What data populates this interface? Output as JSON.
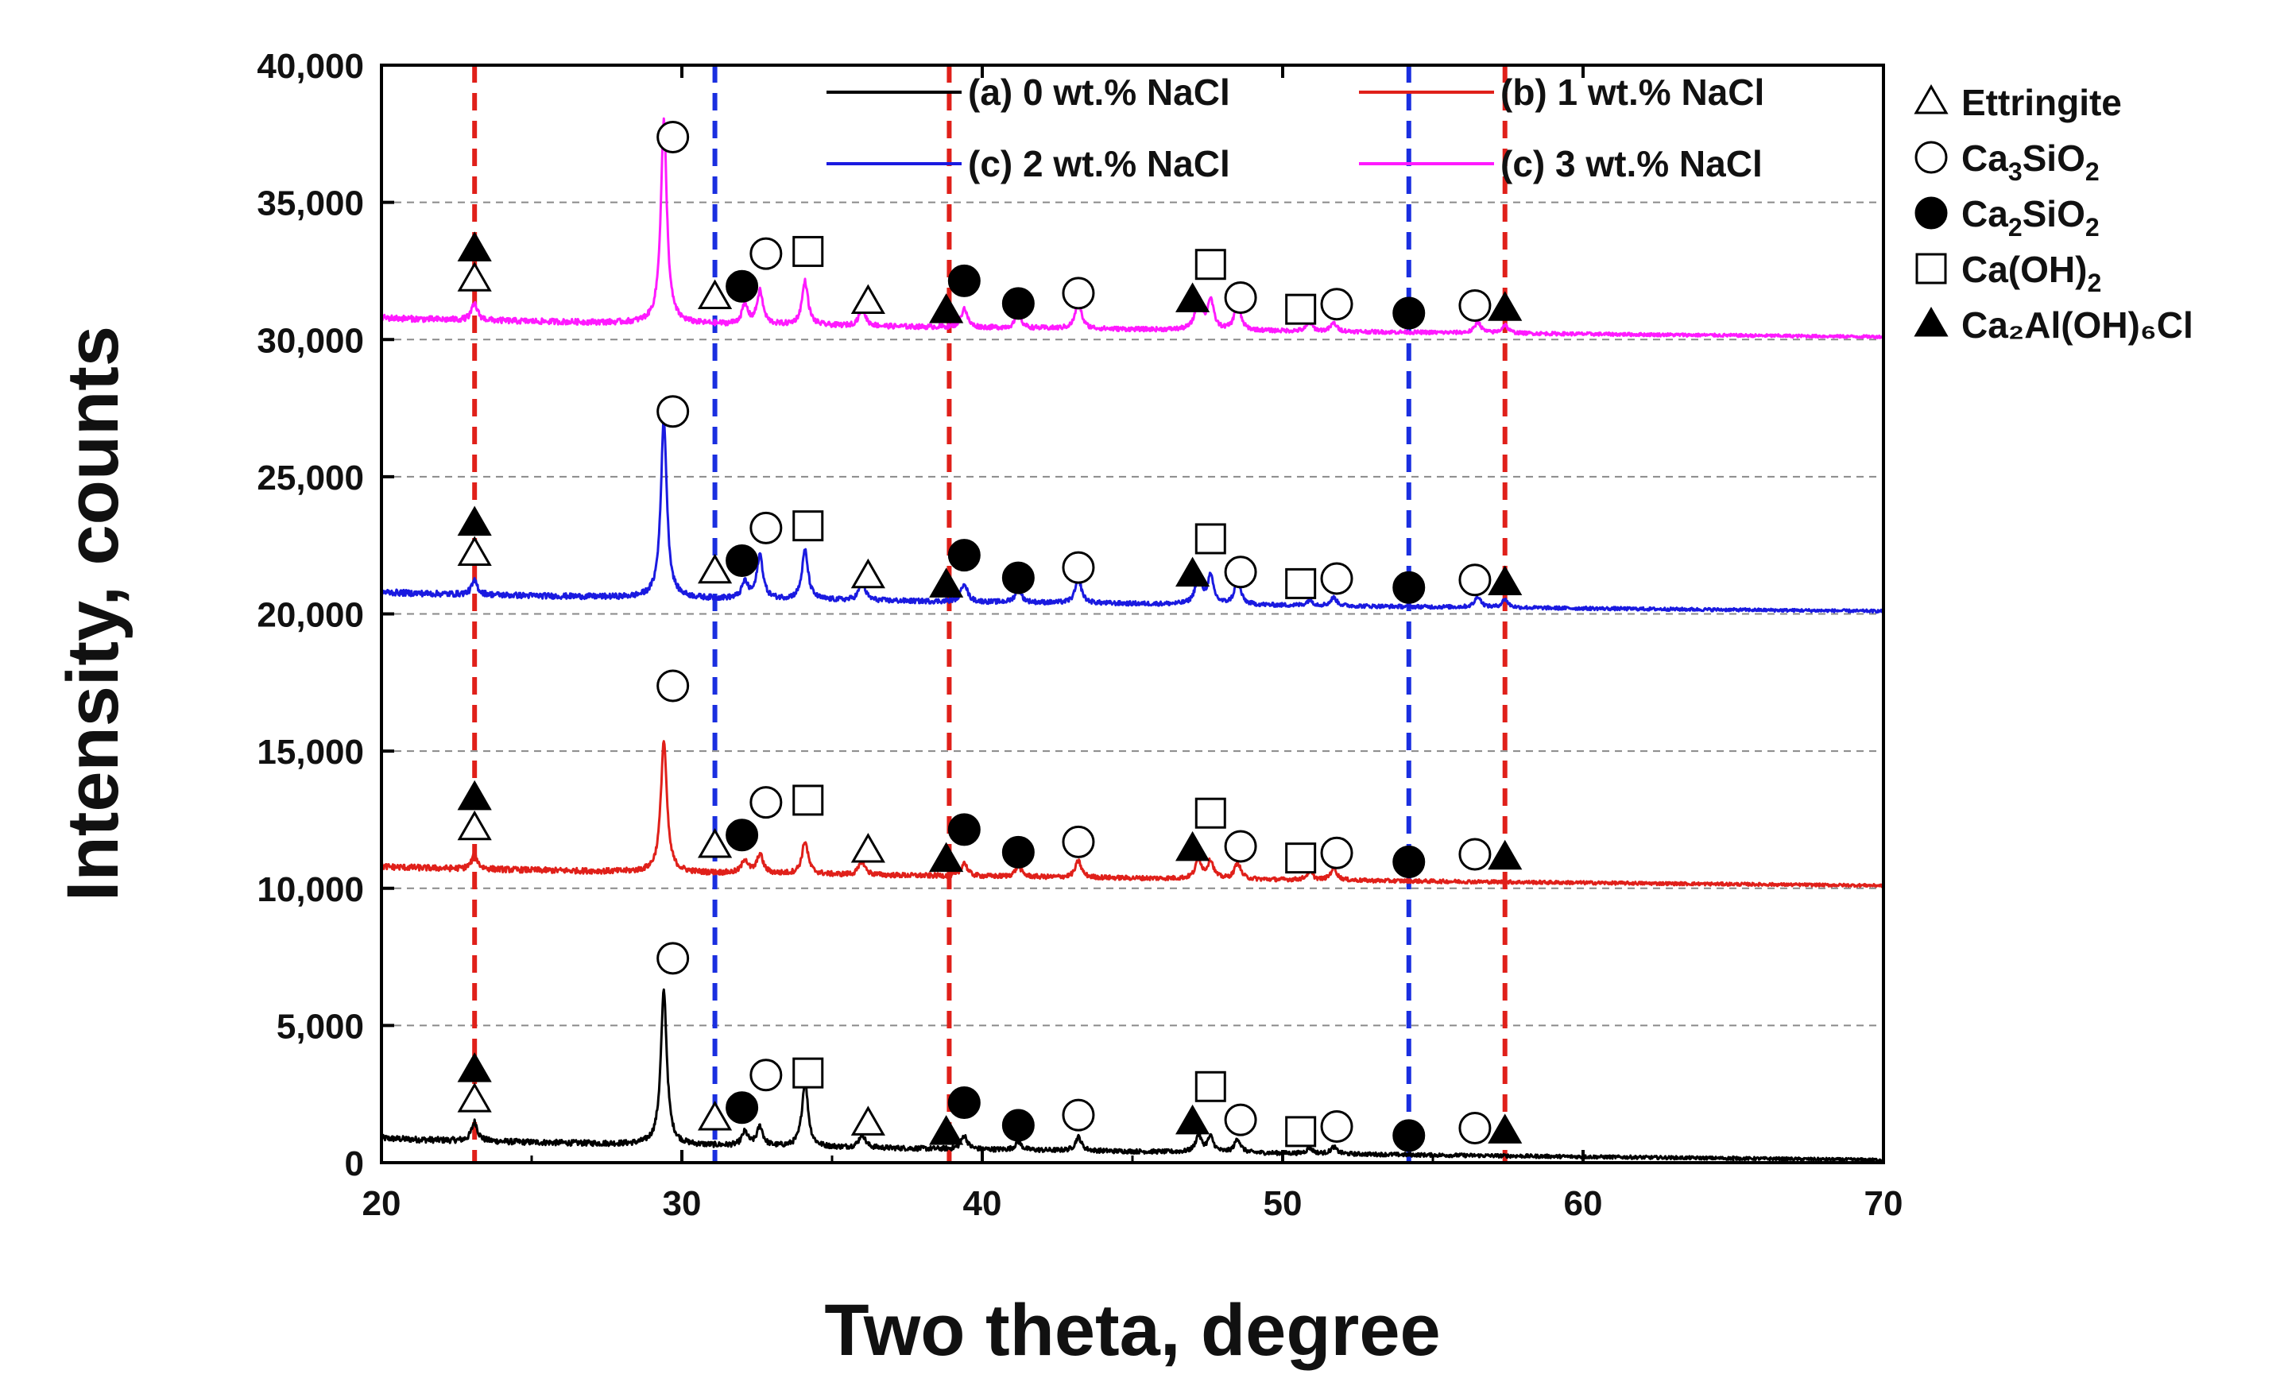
{
  "chart_data": {
    "type": "line",
    "title": "",
    "xlabel": "Two theta, degree",
    "ylabel": "Intensity, counts",
    "xlim": [
      20,
      70
    ],
    "ylim": [
      0,
      40000
    ],
    "xticks": [
      20,
      30,
      40,
      50,
      60,
      70
    ],
    "xtick_labels": [
      "20",
      "30",
      "40",
      "50",
      "60",
      "70"
    ],
    "yticks": [
      0,
      5000,
      10000,
      15000,
      20000,
      25000,
      30000,
      35000,
      40000
    ],
    "ytick_labels": [
      "0",
      "5,000",
      "10,000",
      "15,000",
      "20,000",
      "25,000",
      "30,000",
      "35,000",
      "40,000"
    ],
    "grid": "horizontal dashed",
    "vertical_reference_lines": [
      {
        "x": 23.1,
        "color": "#e0201a"
      },
      {
        "x": 31.1,
        "color": "#1a2fe0"
      },
      {
        "x": 38.9,
        "color": "#e0201a"
      },
      {
        "x": 54.2,
        "color": "#1a2fe0"
      },
      {
        "x": 57.4,
        "color": "#e0201a"
      }
    ],
    "series": [
      {
        "name": "(a) 0 wt.% NaCl",
        "color": "#000000",
        "baseline_start": 900,
        "baseline_end": 100,
        "peaks": [
          [
            23.1,
            700
          ],
          [
            29.4,
            5600
          ],
          [
            32.1,
            500
          ],
          [
            32.6,
            700
          ],
          [
            34.1,
            2400
          ],
          [
            36.0,
            500
          ],
          [
            39.4,
            500
          ],
          [
            41.2,
            300
          ],
          [
            43.2,
            500
          ],
          [
            47.2,
            600
          ],
          [
            47.6,
            550
          ],
          [
            48.5,
            500
          ],
          [
            50.9,
            200
          ],
          [
            51.7,
            250
          ]
        ]
      },
      {
        "name": "(b) 1 wt.% NaCl",
        "color": "#e0201a",
        "baseline_start": 10800,
        "baseline_end": 10100,
        "peaks": [
          [
            23.1,
            500
          ],
          [
            29.4,
            4800
          ],
          [
            32.1,
            500
          ],
          [
            32.6,
            700
          ],
          [
            34.1,
            1200
          ],
          [
            36.0,
            500
          ],
          [
            39.4,
            500
          ],
          [
            41.2,
            400
          ],
          [
            43.2,
            600
          ],
          [
            47.2,
            700
          ],
          [
            47.6,
            650
          ],
          [
            48.5,
            600
          ],
          [
            50.9,
            300
          ],
          [
            51.7,
            450
          ]
        ]
      },
      {
        "name": "(c) 2 wt.% NaCl",
        "color": "#1a1ae0",
        "baseline_start": 20800,
        "baseline_end": 20100,
        "peaks": [
          [
            23.1,
            500
          ],
          [
            29.4,
            6500
          ],
          [
            32.1,
            600
          ],
          [
            32.6,
            1600
          ],
          [
            34.1,
            1800
          ],
          [
            36.0,
            700
          ],
          [
            39.4,
            700
          ],
          [
            41.2,
            500
          ],
          [
            43.2,
            900
          ],
          [
            47.2,
            1100
          ],
          [
            47.6,
            1000
          ],
          [
            48.5,
            900
          ],
          [
            50.9,
            200
          ],
          [
            51.7,
            300
          ],
          [
            56.5,
            400
          ],
          [
            57.4,
            300
          ]
        ]
      },
      {
        "name": "(c) 3 wt.% NaCl",
        "color": "#ff1aff",
        "baseline_start": 30800,
        "baseline_end": 30100,
        "peaks": [
          [
            23.1,
            600
          ],
          [
            29.4,
            7400
          ],
          [
            32.1,
            700
          ],
          [
            32.6,
            1200
          ],
          [
            34.1,
            1600
          ],
          [
            36.0,
            700
          ],
          [
            39.4,
            700
          ],
          [
            41.2,
            500
          ],
          [
            43.2,
            1000
          ],
          [
            47.2,
            1200
          ],
          [
            47.6,
            1100
          ],
          [
            48.5,
            1000
          ],
          [
            50.9,
            300
          ],
          [
            51.7,
            300
          ],
          [
            56.5,
            400
          ],
          [
            57.4,
            300
          ]
        ]
      }
    ],
    "phases": [
      {
        "key": "ettringite",
        "marker": "open-triangle",
        "label": "Ettringite",
        "formula": [
          {
            "t": "Ettringite",
            "sub": false
          }
        ]
      },
      {
        "key": "c3s",
        "marker": "open-circle",
        "label": "Ca3SiO2",
        "formula": [
          {
            "t": "Ca",
            "sub": false
          },
          {
            "t": "3",
            "sub": true
          },
          {
            "t": "SiO",
            "sub": false
          },
          {
            "t": "2",
            "sub": true
          }
        ]
      },
      {
        "key": "c2s",
        "marker": "filled-circle",
        "label": "Ca2SiO2",
        "formula": [
          {
            "t": "Ca",
            "sub": false
          },
          {
            "t": "2",
            "sub": true
          },
          {
            "t": "SiO",
            "sub": false
          },
          {
            "t": "2",
            "sub": true
          }
        ]
      },
      {
        "key": "ch",
        "marker": "open-square",
        "label": "Ca(OH)2",
        "formula": [
          {
            "t": "Ca(OH)",
            "sub": false
          },
          {
            "t": "2",
            "sub": true
          }
        ]
      },
      {
        "key": "friedel",
        "marker": "filled-triangle",
        "label": "Ca₂Al(OH)₆Cl",
        "formula": [
          {
            "t": "Ca₂Al(OH)₆Cl",
            "sub": false
          }
        ]
      }
    ],
    "phase_markers": [
      {
        "marker": "filled-triangle",
        "x": 23.1,
        "offset": 2600
      },
      {
        "marker": "open-triangle",
        "x": 23.1,
        "offset": 1500
      },
      {
        "marker": "open-circle",
        "x": 29.7,
        "offset": 6800
      },
      {
        "marker": "open-triangle",
        "x": 31.1,
        "offset": 1000
      },
      {
        "marker": "filled-circle",
        "x": 32.0,
        "offset": 1400
      },
      {
        "marker": "open-circle",
        "x": 32.8,
        "offset": 2600
      },
      {
        "marker": "open-square",
        "x": 34.2,
        "offset": 2700
      },
      {
        "marker": "open-triangle",
        "x": 36.2,
        "offset": 900
      },
      {
        "marker": "filled-triangle",
        "x": 38.8,
        "offset": 600
      },
      {
        "marker": "filled-circle",
        "x": 39.4,
        "offset": 1700
      },
      {
        "marker": "filled-circle",
        "x": 41.2,
        "offset": 900
      },
      {
        "marker": "open-circle",
        "x": 43.2,
        "offset": 1300
      },
      {
        "marker": "filled-triangle",
        "x": 47.0,
        "offset": 1100
      },
      {
        "marker": "open-square",
        "x": 47.6,
        "offset": 2400
      },
      {
        "marker": "open-circle",
        "x": 48.6,
        "offset": 1200
      },
      {
        "marker": "open-square",
        "x": 50.6,
        "offset": 800
      },
      {
        "marker": "open-circle",
        "x": 51.8,
        "offset": 1000
      },
      {
        "marker": "filled-circle",
        "x": 54.2,
        "offset": 700
      },
      {
        "marker": "open-circle",
        "x": 56.4,
        "offset": 1000
      },
      {
        "marker": "filled-triangle",
        "x": 57.4,
        "offset": 900
      }
    ],
    "legend_placement": "top inside plot (series) and right outside plot (phases)"
  }
}
